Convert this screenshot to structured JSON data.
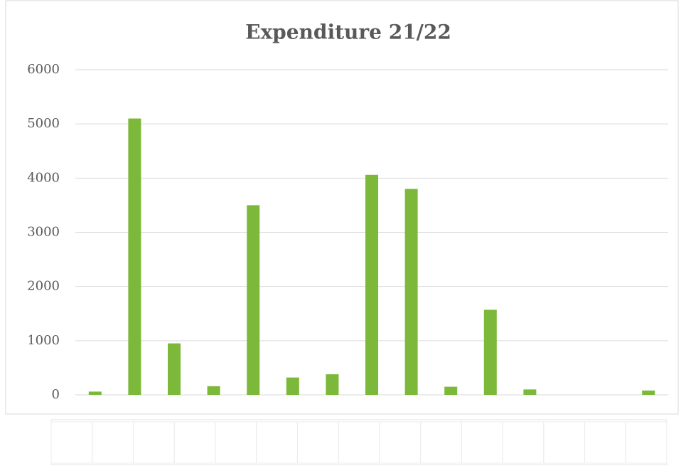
{
  "chart_data": {
    "type": "bar",
    "title": "Expenditure 21/22",
    "categories": [
      null,
      null,
      null,
      null,
      null,
      null,
      null,
      null,
      null,
      null,
      null,
      null,
      null,
      null,
      null
    ],
    "values": [
      60,
      5100,
      950,
      160,
      3500,
      320,
      380,
      4060,
      3800,
      150,
      1570,
      100,
      0,
      0,
      80
    ],
    "color": "#7cb83a",
    "ylim": [
      0,
      6000
    ],
    "yticks": [
      0,
      1000,
      2000,
      3000,
      4000,
      5000,
      6000
    ],
    "grid": true
  }
}
